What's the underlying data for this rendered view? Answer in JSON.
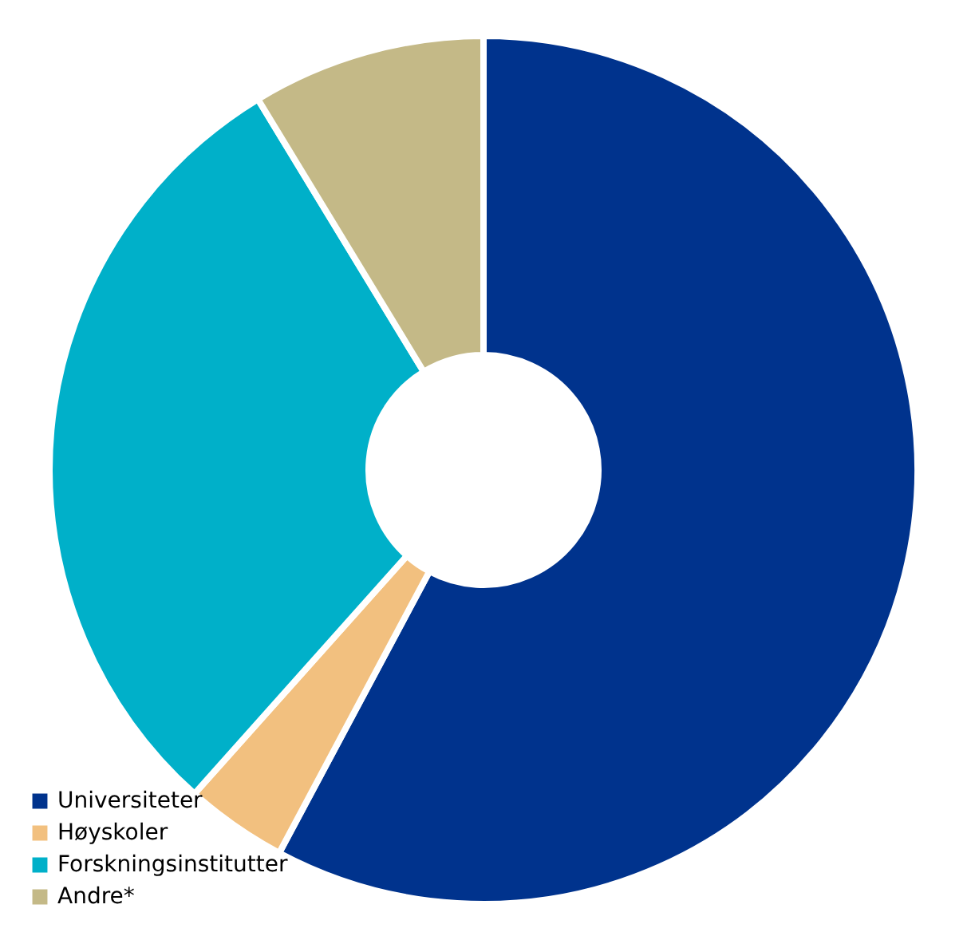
{
  "chart_data": {
    "type": "donut",
    "categories": [
      "Universiteter",
      "Høyskoler",
      "Forskningsinstitutter",
      "Andre*"
    ],
    "values": [
      57.8,
      3.8,
      29.7,
      8.7
    ],
    "colors": [
      "#00338d",
      "#f2c07f",
      "#00b0c9",
      "#c4b987"
    ],
    "legend": "bottom left"
  }
}
